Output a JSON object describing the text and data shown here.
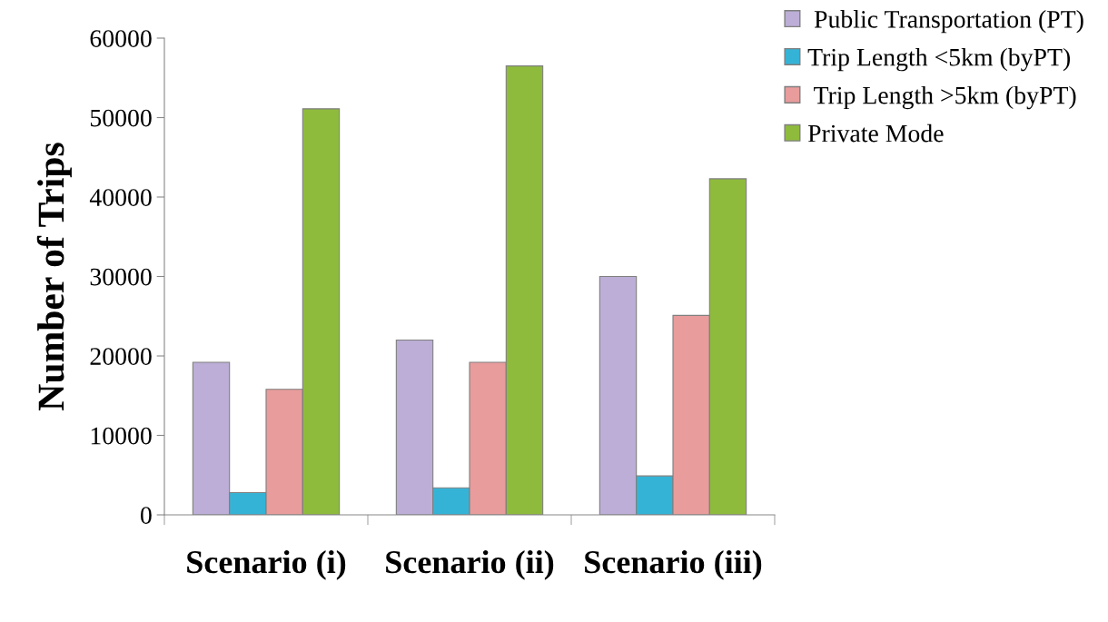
{
  "chart_data": {
    "type": "bar",
    "ylabel": "Number of Trips",
    "categories": [
      "Scenario (i)",
      "Scenario (ii)",
      "Scenario (iii)"
    ],
    "series": [
      {
        "name": " Public Transportation (PT)",
        "color": "#bcaed6",
        "values": [
          19200,
          22000,
          30000
        ]
      },
      {
        "name": "Trip Length <5km (byPT)",
        "color": "#35b3d6",
        "values": [
          2800,
          3400,
          4900
        ]
      },
      {
        "name": " Trip Length >5km (byPT)",
        "color": "#e89c9c",
        "values": [
          15800,
          19200,
          25100
        ]
      },
      {
        "name": "Private Mode",
        "color": "#8fbb3c",
        "values": [
          51100,
          56500,
          42300
        ]
      }
    ],
    "ylim": [
      0,
      60000
    ],
    "yticks": [
      0,
      10000,
      20000,
      30000,
      40000,
      50000,
      60000
    ],
    "grid": false,
    "legend": "top right"
  }
}
